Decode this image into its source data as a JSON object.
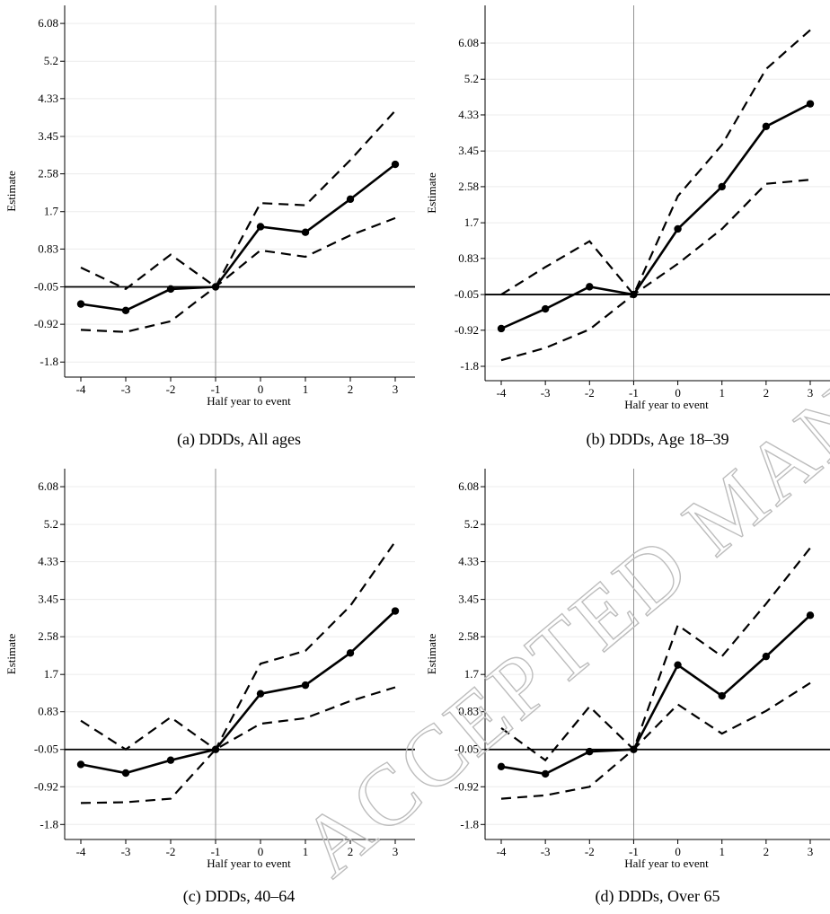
{
  "watermark": "ACCEPTED MANUSCRIPT",
  "chart_data": [
    {
      "type": "line",
      "caption": "(a) DDDs, All ages",
      "xlabel": "Half year to event",
      "ylabel": "Estimate",
      "x": [
        -4,
        -3,
        -2,
        -1,
        0,
        1,
        2,
        3
      ],
      "x_ticks": [
        "-4",
        "-3",
        "-2",
        "-1",
        "0",
        "1",
        "2",
        "3"
      ],
      "y_ticks": [
        "6.08",
        "5.2",
        "4.33",
        "3.45",
        "2.58",
        "1.7",
        "0.83",
        "-0.05",
        "-0.92",
        "-1.8"
      ],
      "ylim": [
        -2.15,
        6.5
      ],
      "reference_vline_x": -1,
      "reference_hline_y": -0.05,
      "grid": "horizontal",
      "series": [
        {
          "role": "estimate",
          "style": "solid-with-markers",
          "values": [
            -0.45,
            -0.6,
            -0.1,
            -0.05,
            1.35,
            1.22,
            1.99,
            2.8
          ]
        },
        {
          "role": "upper",
          "style": "dashed",
          "values": [
            0.4,
            -0.1,
            0.7,
            -0.05,
            1.9,
            1.85,
            2.9,
            4.05
          ]
        },
        {
          "role": "lower",
          "style": "dashed",
          "values": [
            -1.05,
            -1.1,
            -0.85,
            -0.05,
            0.8,
            0.65,
            1.15,
            1.55
          ]
        }
      ]
    },
    {
      "type": "line",
      "caption": "(b) DDDs, Age 18–39",
      "xlabel": "Half year to event",
      "ylabel": "Estimate",
      "x": [
        -4,
        -3,
        -2,
        -1,
        0,
        1,
        2,
        3
      ],
      "x_ticks": [
        "-4",
        "-3",
        "-2",
        "-1",
        "0",
        "1",
        "2",
        "3"
      ],
      "y_ticks": [
        "6.08",
        "5.2",
        "4.33",
        "3.45",
        "2.58",
        "1.7",
        "0.83",
        "-0.05",
        "-0.92",
        "-1.8"
      ],
      "ylim": [
        -2.15,
        7.0
      ],
      "reference_vline_x": -1,
      "reference_hline_y": -0.05,
      "grid": "horizontal",
      "series": [
        {
          "role": "estimate",
          "style": "solid-with-markers",
          "values": [
            -0.88,
            -0.4,
            0.14,
            -0.05,
            1.55,
            2.58,
            4.05,
            4.6
          ]
        },
        {
          "role": "upper",
          "style": "dashed",
          "values": [
            -0.05,
            0.62,
            1.25,
            -0.05,
            2.35,
            3.6,
            5.45,
            6.4
          ]
        },
        {
          "role": "lower",
          "style": "dashed",
          "values": [
            -1.65,
            -1.35,
            -0.9,
            -0.05,
            0.7,
            1.55,
            2.65,
            2.75
          ]
        }
      ]
    },
    {
      "type": "line",
      "caption": "(c) DDDs, 40–64",
      "xlabel": "Half year to event",
      "ylabel": "Estimate",
      "x": [
        -4,
        -3,
        -2,
        -1,
        0,
        1,
        2,
        3
      ],
      "x_ticks": [
        "-4",
        "-3",
        "-2",
        "-1",
        "0",
        "1",
        "2",
        "3"
      ],
      "y_ticks": [
        "6.08",
        "5.2",
        "4.33",
        "3.45",
        "2.58",
        "1.7",
        "0.83",
        "-0.05",
        "-0.92",
        "-1.8"
      ],
      "ylim": [
        -2.15,
        6.5
      ],
      "reference_vline_x": -1,
      "reference_hline_y": -0.05,
      "grid": "horizontal",
      "series": [
        {
          "role": "estimate",
          "style": "solid-with-markers",
          "values": [
            -0.4,
            -0.6,
            -0.3,
            -0.05,
            1.25,
            1.45,
            2.2,
            3.18
          ]
        },
        {
          "role": "upper",
          "style": "dashed",
          "values": [
            0.62,
            -0.05,
            0.7,
            -0.05,
            1.95,
            2.25,
            3.3,
            4.8
          ]
        },
        {
          "role": "lower",
          "style": "dashed",
          "values": [
            -1.3,
            -1.28,
            -1.2,
            -0.05,
            0.55,
            0.68,
            1.08,
            1.4
          ]
        }
      ]
    },
    {
      "type": "line",
      "caption": "(d) DDDs, Over 65",
      "xlabel": "Half year to event",
      "ylabel": "Estimate",
      "x": [
        -4,
        -3,
        -2,
        -1,
        0,
        1,
        2,
        3
      ],
      "x_ticks": [
        "-4",
        "-3",
        "-2",
        "-1",
        "0",
        "1",
        "2",
        "3"
      ],
      "y_ticks": [
        "6.08",
        "5.2",
        "4.33",
        "3.45",
        "2.58",
        "1.7",
        "0.83",
        "-0.05",
        "-0.92",
        "-1.8"
      ],
      "ylim": [
        -2.15,
        6.5
      ],
      "reference_vline_x": -1,
      "reference_hline_y": -0.05,
      "grid": "horizontal",
      "series": [
        {
          "role": "estimate",
          "style": "solid-with-markers",
          "values": [
            -0.45,
            -0.62,
            -0.1,
            -0.05,
            1.92,
            1.2,
            2.12,
            3.08
          ]
        },
        {
          "role": "upper",
          "style": "dashed",
          "values": [
            0.45,
            -0.3,
            0.95,
            -0.05,
            2.85,
            2.12,
            3.35,
            4.65
          ]
        },
        {
          "role": "lower",
          "style": "dashed",
          "values": [
            -1.2,
            -1.12,
            -0.92,
            -0.05,
            1.0,
            0.32,
            0.85,
            1.5
          ]
        }
      ]
    }
  ]
}
